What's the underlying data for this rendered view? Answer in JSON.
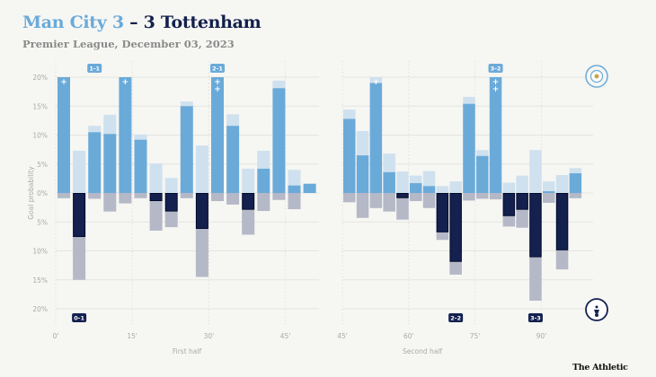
{
  "header": {
    "home_part": "Man City 3",
    "away_part": " – 3 Tottenham",
    "subtitle": "Premier League, December 03, 2023"
  },
  "brand": "The Athletic",
  "colors": {
    "home_goal_prob": "#6aaad9",
    "home_extra": "#cfe1ee",
    "away_goal_prob": "#14214f",
    "away_extra": "#b5b8c6",
    "grid": "#e4e4e0",
    "background": "#f6f6f3"
  },
  "icons": {
    "home_crest": "man-city-crest-icon",
    "away_crest": "tottenham-crest-icon",
    "goal_marker": "plus-icon"
  },
  "chart_data": {
    "type": "bar",
    "title": "Man City 3 – 3 Tottenham",
    "subtitle": "Premier League, December 03, 2023",
    "ylabel": "Goal probability",
    "yticks_top": [
      "20%",
      "15%",
      "10%",
      "5%",
      "0%"
    ],
    "yticks_bottom": [
      "5%",
      "10%",
      "15%",
      "20%"
    ],
    "ylim": [
      -20,
      20
    ],
    "grid": true,
    "panels": [
      {
        "name": "First half",
        "xticks": [
          "0'",
          "15'",
          "30'",
          "45'"
        ],
        "xtick_minutes": [
          0,
          15,
          30,
          45
        ],
        "range": [
          0,
          50
        ],
        "home": [
          {
            "value": 20,
            "total": 20,
            "goals": 1
          },
          {
            "value": 0,
            "total": 7.3,
            "goals": 0
          },
          {
            "value": 10.5,
            "total": 11.6,
            "goals": 0
          },
          {
            "value": 10.2,
            "total": 13.5,
            "goals": 0
          },
          {
            "value": 20,
            "total": 20,
            "goals": 1
          },
          {
            "value": 9.2,
            "total": 10.1,
            "goals": 0
          },
          {
            "value": 0,
            "total": 5.1,
            "goals": 0
          },
          {
            "value": 0,
            "total": 2.6,
            "goals": 0
          },
          {
            "value": 15.0,
            "total": 15.8,
            "goals": 0
          },
          {
            "value": 0,
            "total": 8.2,
            "goals": 0
          },
          {
            "value": 20,
            "total": 20,
            "goals": 2
          },
          {
            "value": 11.6,
            "total": 13.6,
            "goals": 0
          },
          {
            "value": 0,
            "total": 4.2,
            "goals": 0
          },
          {
            "value": 4.2,
            "total": 7.3,
            "goals": 0
          },
          {
            "value": 18.1,
            "total": 19.4,
            "goals": 0
          },
          {
            "value": 1.3,
            "total": 4.0,
            "goals": 0
          },
          {
            "value": 1.6,
            "total": 1.6,
            "goals": 0
          }
        ],
        "away": [
          {
            "value": 0,
            "total": 0.9
          },
          {
            "value": 7.6,
            "total": 15.0
          },
          {
            "value": 0,
            "total": 1.0
          },
          {
            "value": 0,
            "total": 3.2
          },
          {
            "value": 0,
            "total": 1.8
          },
          {
            "value": 0,
            "total": 0.9
          },
          {
            "value": 1.4,
            "total": 6.5
          },
          {
            "value": 3.2,
            "total": 5.9
          },
          {
            "value": 0,
            "total": 0.9
          },
          {
            "value": 6.2,
            "total": 14.5
          },
          {
            "value": 0,
            "total": 1.4
          },
          {
            "value": 0,
            "total": 2.0
          },
          {
            "value": 2.9,
            "total": 7.2
          },
          {
            "value": 0,
            "total": 3.1
          },
          {
            "value": 0,
            "total": 1.2
          },
          {
            "value": 0,
            "total": 2.8
          },
          {
            "value": 0,
            "total": 0
          }
        ],
        "score_badges": [
          {
            "label": "1-1",
            "team": "home",
            "bar": 2
          },
          {
            "label": "2-1",
            "team": "home",
            "bar": 10
          },
          {
            "label": "0-1",
            "team": "away",
            "bar": 1
          }
        ]
      },
      {
        "name": "Second half",
        "xticks": [
          "45'",
          "60'",
          "75'",
          "90'"
        ],
        "xtick_minutes": [
          45,
          60,
          75,
          90
        ],
        "range": [
          45,
          100
        ],
        "home": [
          {
            "value": 12.8,
            "total": 14.4,
            "goals": 0
          },
          {
            "value": 6.5,
            "total": 10.7,
            "goals": 0
          },
          {
            "value": 19.0,
            "total": 20,
            "goals": 1
          },
          {
            "value": 3.6,
            "total": 6.8,
            "goals": 0
          },
          {
            "value": 0,
            "total": 3.7,
            "goals": 0
          },
          {
            "value": 1.7,
            "total": 3.0,
            "goals": 0
          },
          {
            "value": 1.2,
            "total": 3.8,
            "goals": 0
          },
          {
            "value": 0,
            "total": 1.2,
            "goals": 0
          },
          {
            "value": 0,
            "total": 2.0,
            "goals": 0
          },
          {
            "value": 15.4,
            "total": 16.6,
            "goals": 0
          },
          {
            "value": 6.4,
            "total": 7.4,
            "goals": 0
          },
          {
            "value": 20,
            "total": 20,
            "goals": 2
          },
          {
            "value": 0,
            "total": 1.8,
            "goals": 0
          },
          {
            "value": 0,
            "total": 3.0,
            "goals": 0
          },
          {
            "value": 0,
            "total": 7.4,
            "goals": 0
          },
          {
            "value": 0.3,
            "total": 2.0,
            "goals": 0
          },
          {
            "value": 0,
            "total": 3.1,
            "goals": 0
          },
          {
            "value": 3.4,
            "total": 4.3,
            "goals": 0
          }
        ],
        "away": [
          {
            "value": 0,
            "total": 1.6
          },
          {
            "value": 0,
            "total": 4.3
          },
          {
            "value": 0,
            "total": 2.6
          },
          {
            "value": 0,
            "total": 3.2
          },
          {
            "value": 0.9,
            "total": 4.6
          },
          {
            "value": 0,
            "total": 1.4
          },
          {
            "value": 0,
            "total": 2.6
          },
          {
            "value": 6.8,
            "total": 8.1
          },
          {
            "value": 11.9,
            "total": 14.1
          },
          {
            "value": 0,
            "total": 1.3
          },
          {
            "value": 0,
            "total": 1.0
          },
          {
            "value": 0,
            "total": 1.1
          },
          {
            "value": 4.0,
            "total": 5.8
          },
          {
            "value": 2.9,
            "total": 6.0
          },
          {
            "value": 11.1,
            "total": 18.6
          },
          {
            "value": 0,
            "total": 1.7
          },
          {
            "value": 9.9,
            "total": 13.2
          },
          {
            "value": 0,
            "total": 0.9
          }
        ],
        "score_badges": [
          {
            "label": "3-2",
            "team": "home",
            "bar": 11
          },
          {
            "label": "2-2",
            "team": "away",
            "bar": 8
          },
          {
            "label": "3-3",
            "team": "away",
            "bar": 14
          }
        ]
      }
    ]
  }
}
